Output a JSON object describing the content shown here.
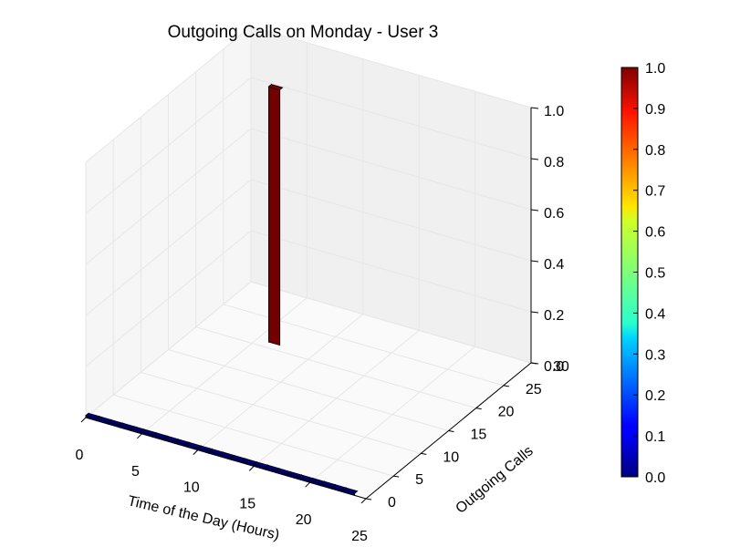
{
  "chart_data": {
    "type": "bar3d",
    "title": "Outgoing Calls on Monday - User 3",
    "xlabel": "Time of the Day (Hours)",
    "ylabel": "Outgoing Calls",
    "zlabel": "",
    "xlim": [
      0,
      25
    ],
    "ylim": [
      0,
      30
    ],
    "zlim": [
      0,
      1.0
    ],
    "x_ticks": [
      "0",
      "5",
      "10",
      "15",
      "20",
      "25"
    ],
    "y_ticks": [
      "0",
      "5",
      "10",
      "15",
      "20",
      "25",
      "30"
    ],
    "z_ticks": [
      "0.0",
      "0.2",
      "0.4",
      "0.6",
      "0.8",
      "1.0"
    ],
    "bars": [
      {
        "x": 0,
        "y": 0,
        "value": 0
      },
      {
        "x": 1,
        "y": 0,
        "value": 0
      },
      {
        "x": 2,
        "y": 0,
        "value": 0
      },
      {
        "x": 3,
        "y": 0,
        "value": 0
      },
      {
        "x": 4,
        "y": 0,
        "value": 0
      },
      {
        "x": 5,
        "y": 0,
        "value": 0
      },
      {
        "x": 6,
        "y": 0,
        "value": 0
      },
      {
        "x": 7,
        "y": 0,
        "value": 0
      },
      {
        "x": 8,
        "y": 0,
        "value": 0
      },
      {
        "x": 9,
        "y": 0,
        "value": 0
      },
      {
        "x": 10,
        "y": 0,
        "value": 0
      },
      {
        "x": 11,
        "y": 0,
        "value": 0
      },
      {
        "x": 12,
        "y": 0,
        "value": 0
      },
      {
        "x": 13,
        "y": 0,
        "value": 0
      },
      {
        "x": 14,
        "y": 0,
        "value": 0
      },
      {
        "x": 15,
        "y": 0,
        "value": 0
      },
      {
        "x": 16,
        "y": 0,
        "value": 0
      },
      {
        "x": 17,
        "y": 0,
        "value": 0
      },
      {
        "x": 18,
        "y": 0,
        "value": 0
      },
      {
        "x": 19,
        "y": 0,
        "value": 0
      },
      {
        "x": 20,
        "y": 0,
        "value": 0
      },
      {
        "x": 21,
        "y": 0,
        "value": 0
      },
      {
        "x": 22,
        "y": 0,
        "value": 0
      },
      {
        "x": 23,
        "y": 0,
        "value": 0
      },
      {
        "x": 6,
        "y": 21,
        "value": 1.0
      }
    ],
    "colorbar": {
      "colormap": "jet",
      "range": [
        0,
        1.0
      ],
      "ticks": [
        "0.0",
        "0.1",
        "0.2",
        "0.3",
        "0.4",
        "0.5",
        "0.6",
        "0.7",
        "0.8",
        "0.9",
        "1.0"
      ]
    },
    "colors": {
      "low": "#00007f",
      "high": "#7f0000",
      "pane": "#f2f2f2",
      "grid": "#e6e6e6"
    },
    "grid": true
  }
}
